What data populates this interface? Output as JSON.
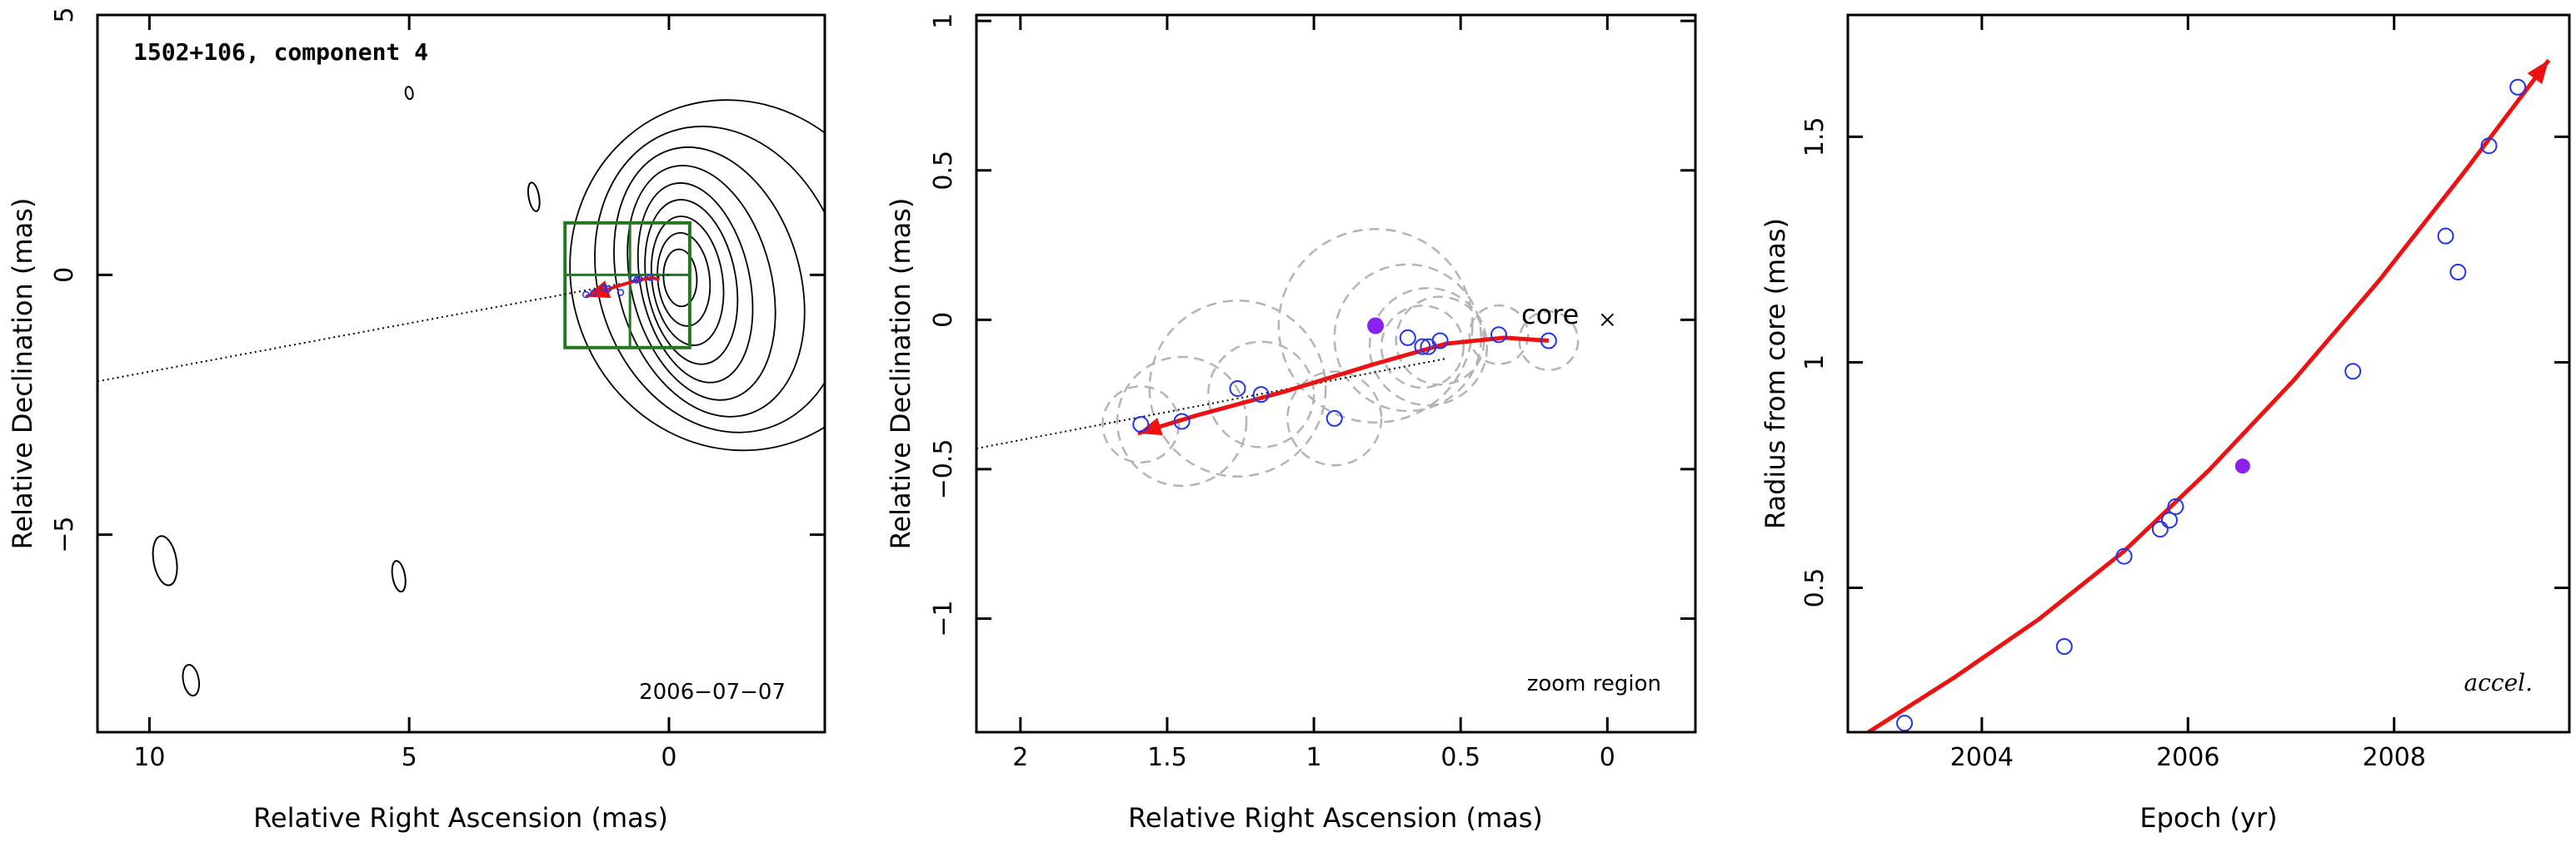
{
  "chart_data": [
    {
      "type": "contour",
      "title": "1502+106, component 4",
      "xlabel": "Relative Right Ascension (mas)",
      "ylabel": "Relative Declination (mas)",
      "xlim": [
        11,
        -3
      ],
      "ylim": [
        -8.8,
        5
      ],
      "xticks": [
        10,
        5,
        0
      ],
      "yticks": [
        5,
        0,
        -5
      ],
      "tick_labels_x": [
        "10",
        "5",
        "0"
      ],
      "tick_labels_y": [
        "5",
        "0",
        "−5"
      ],
      "epoch_label": "2006−07−07",
      "zoom_box": {
        "x": [
          2.0,
          -0.4
        ],
        "y": [
          -1.4,
          1.0
        ]
      },
      "contours": {
        "center": [
          -0.1,
          0.0
        ],
        "rx": [
          0.32,
          0.5,
          0.68,
          0.86,
          1.05,
          1.35,
          1.75,
          2.35,
          3.15
        ],
        "ry": [
          0.55,
          0.9,
          1.25,
          1.6,
          1.95,
          2.3,
          2.65,
          3.0,
          3.4
        ]
      },
      "small_contours": [
        {
          "x": 9.7,
          "y": -5.5,
          "rx": 0.22,
          "ry": 0.48
        },
        {
          "x": 9.2,
          "y": -7.8,
          "rx": 0.15,
          "ry": 0.3
        },
        {
          "x": 5.2,
          "y": -5.8,
          "rx": 0.12,
          "ry": 0.3
        },
        {
          "x": 2.6,
          "y": 1.5,
          "rx": 0.1,
          "ry": 0.28
        },
        {
          "x": 5.0,
          "y": 3.5,
          "rx": 0.07,
          "ry": 0.12
        }
      ],
      "trajectory_line": {
        "x": [
          11,
          0
        ],
        "y": [
          -2.05,
          0
        ]
      },
      "fit_arrow": {
        "x": [
          0.18,
          0.35,
          0.6,
          1.0,
          1.6
        ],
        "y": [
          -0.08,
          -0.06,
          -0.1,
          -0.22,
          -0.42
        ]
      },
      "points": [
        {
          "x": 1.6,
          "y": -0.38
        },
        {
          "x": 1.45,
          "y": -0.35
        },
        {
          "x": 1.25,
          "y": -0.25
        },
        {
          "x": 1.17,
          "y": -0.27
        },
        {
          "x": 0.93,
          "y": -0.34
        },
        {
          "x": 0.68,
          "y": -0.07
        },
        {
          "x": 0.62,
          "y": -0.1
        },
        {
          "x": 0.57,
          "y": -0.08
        },
        {
          "x": 0.36,
          "y": -0.05
        }
      ]
    },
    {
      "type": "scatter",
      "xlabel": "Relative Right Ascension (mas)",
      "ylabel": "Relative Declination (mas)",
      "xlim": [
        2.15,
        -0.3
      ],
      "ylim": [
        -1.38,
        1.02
      ],
      "xticks": [
        2,
        1.5,
        1,
        0.5,
        0
      ],
      "yticks": [
        1,
        0.5,
        0,
        -0.5,
        -1
      ],
      "tick_labels_x": [
        "2",
        "1.5",
        "1",
        "0.5",
        "0"
      ],
      "tick_labels_y": [
        "1",
        "0.5",
        "0",
        "−0.5",
        "−1"
      ],
      "core_label": "core",
      "corner_label": "zoom region",
      "core": {
        "x": 0.0,
        "y": 0.0
      },
      "points": [
        {
          "x": 1.59,
          "y": -0.35,
          "r": 0.13
        },
        {
          "x": 1.45,
          "y": -0.34,
          "r": 0.22
        },
        {
          "x": 1.26,
          "y": -0.23,
          "r": 0.3
        },
        {
          "x": 1.18,
          "y": -0.25,
          "r": 0.18
        },
        {
          "x": 0.93,
          "y": -0.33,
          "r": 0.16
        },
        {
          "x": 0.68,
          "y": -0.06,
          "r": 0.25
        },
        {
          "x": 0.63,
          "y": -0.09,
          "r": 0.14
        },
        {
          "x": 0.61,
          "y": -0.09,
          "r": 0.2
        },
        {
          "x": 0.57,
          "y": -0.07,
          "r": 0.15
        },
        {
          "x": 0.37,
          "y": -0.05,
          "r": 0.1
        },
        {
          "x": 0.2,
          "y": -0.07,
          "r": 0.1
        }
      ],
      "highlight_point": {
        "x": 0.79,
        "y": -0.02,
        "r": 0.33
      },
      "trajectory_line": {
        "x": [
          2.2,
          0.55
        ],
        "y": [
          -0.44,
          -0.13
        ]
      },
      "fit_arrow": {
        "x": [
          0.2,
          0.35,
          0.55,
          0.8,
          1.1,
          1.4,
          1.6
        ],
        "y": [
          -0.07,
          -0.06,
          -0.08,
          -0.15,
          -0.24,
          -0.32,
          -0.38
        ]
      }
    },
    {
      "type": "scatter",
      "xlabel": "Epoch (yr)",
      "ylabel": "Radius from core (mas)",
      "xlim": [
        2002.7,
        2009.7
      ],
      "ylim": [
        0.18,
        1.77
      ],
      "xticks": [
        2004,
        2006,
        2008
      ],
      "yticks": [
        0.5,
        1,
        1.5
      ],
      "tick_labels_x": [
        "2004",
        "2006",
        "2008"
      ],
      "tick_labels_y": [
        "0.5",
        "1",
        "1.5"
      ],
      "corner_label": "accel.",
      "points": [
        {
          "x": 2003.25,
          "y": 0.2
        },
        {
          "x": 2004.8,
          "y": 0.37
        },
        {
          "x": 2005.38,
          "y": 0.57
        },
        {
          "x": 2005.73,
          "y": 0.63
        },
        {
          "x": 2005.82,
          "y": 0.65
        },
        {
          "x": 2005.88,
          "y": 0.68
        },
        {
          "x": 2007.6,
          "y": 0.98
        },
        {
          "x": 2008.5,
          "y": 1.28
        },
        {
          "x": 2008.62,
          "y": 1.2
        },
        {
          "x": 2008.92,
          "y": 1.48
        },
        {
          "x": 2009.2,
          "y": 1.61
        }
      ],
      "highlight_point": {
        "x": 2006.53,
        "y": 0.77
      },
      "fit_curve": {
        "x0": 2002.9,
        "x1": 2009.5,
        "y": [
          0.18,
          0.3,
          0.43,
          0.58,
          0.76,
          0.96,
          1.18,
          1.42,
          1.67
        ]
      }
    }
  ],
  "colors": {
    "contour": "#000000",
    "fit": "#ee1111",
    "points": "#2233ee",
    "highlight": "#8822ee",
    "zoom_box": "#227722",
    "uncertainty_circles": "#b4b4b4"
  }
}
